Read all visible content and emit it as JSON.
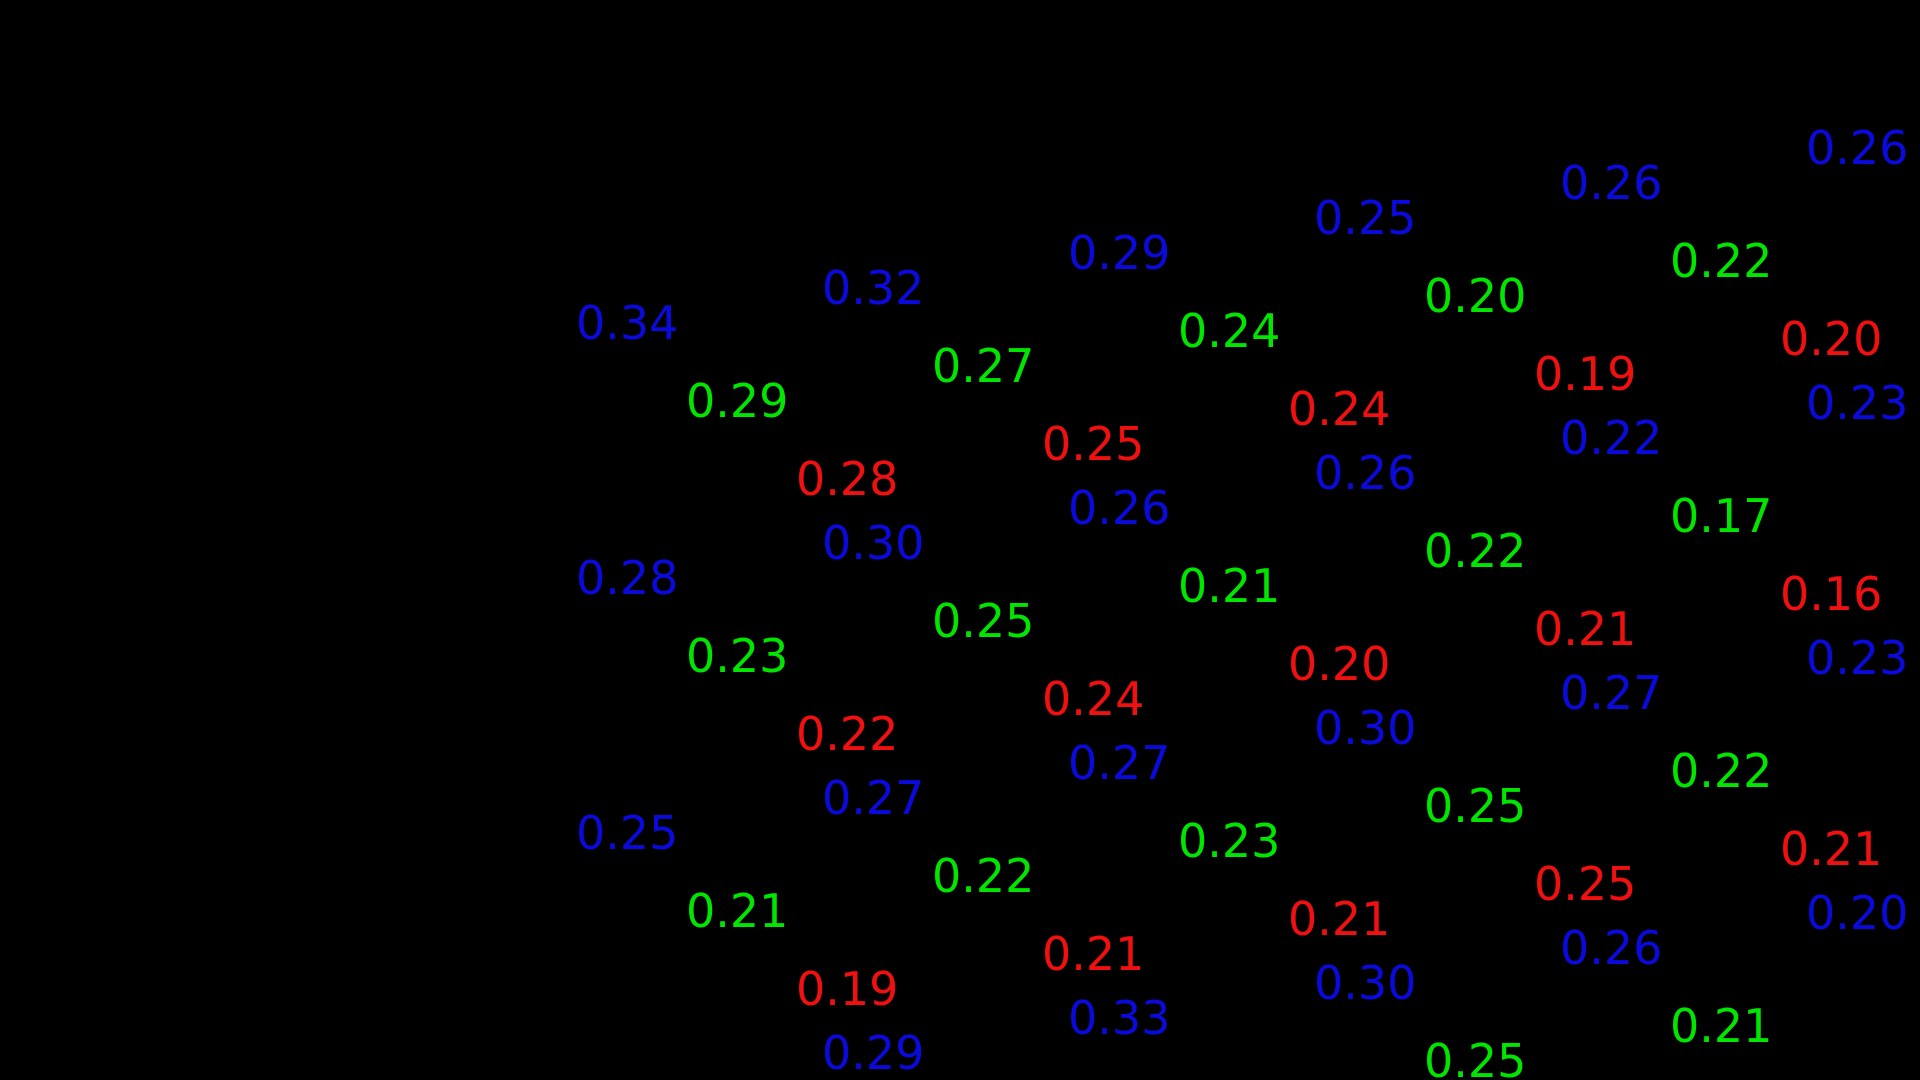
{
  "colors": {
    "background": "#000000",
    "blue": "#0a0adc",
    "green": "#00e600",
    "red": "#f01010"
  },
  "columns": [
    {
      "blue": [
        "0.34",
        "0.28",
        "0.25"
      ],
      "green": [
        "0.29",
        "0.23",
        "0.21"
      ],
      "red": [
        "0.28",
        "0.22",
        "0.19"
      ]
    },
    {
      "blue": [
        "0.32",
        "0.30",
        "0.27",
        "0.29"
      ],
      "green": [
        "0.27",
        "0.25",
        "0.22"
      ],
      "red": [
        "0.25",
        "0.24",
        "0.21"
      ]
    },
    {
      "blue": [
        "0.29",
        "0.26",
        "0.27",
        "0.33"
      ],
      "green": [
        "0.24",
        "0.21",
        "0.23"
      ],
      "red": [
        "0.24",
        "0.20",
        "0.21"
      ]
    },
    {
      "blue": [
        "0.25",
        "0.26",
        "0.30",
        "0.30"
      ],
      "green": [
        "0.20",
        "0.22",
        "0.25",
        "0.25"
      ],
      "red": [
        "0.19",
        "0.21",
        "0.25"
      ]
    },
    {
      "blue": [
        "0.26",
        "0.22",
        "0.27",
        "0.26"
      ],
      "green": [
        "0.22",
        "0.17",
        "0.22",
        "0.21"
      ],
      "red": [
        "0.20",
        "0.16",
        "0.21"
      ]
    },
    {
      "blue": [
        "0.26",
        "0.23",
        "0.23",
        "0.20"
      ],
      "green": [],
      "red": []
    }
  ]
}
